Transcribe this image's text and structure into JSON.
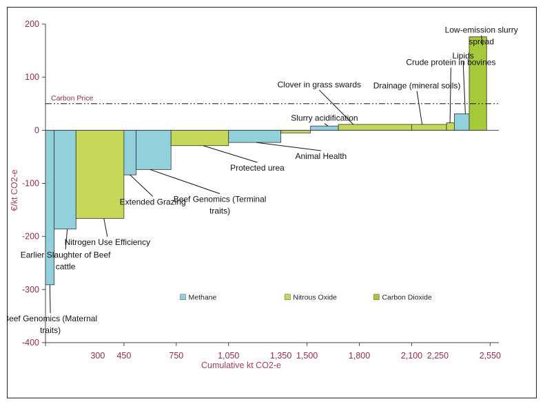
{
  "chart_data": {
    "type": "bar",
    "subtype": "marginal-abatement-cost-curve",
    "title": "",
    "xlabel": "Cumulative kt CO2-e",
    "ylabel": "€/kt CO2-e",
    "xlim": [
      0,
      2600
    ],
    "ylim": [
      -400,
      200
    ],
    "x_ticks": [
      300,
      450,
      750,
      1050,
      1350,
      1500,
      1800,
      2100,
      2250,
      2550
    ],
    "x_tick_labels": [
      "300",
      "450",
      "750",
      "1,050",
      "1,350",
      "1,500",
      "1,800",
      "2,100",
      "2,250",
      "2,550"
    ],
    "y_ticks": [
      -400,
      -300,
      -200,
      -100,
      0,
      100,
      200
    ],
    "carbon_price": {
      "label": "Carbon Price",
      "value": 50
    },
    "colors": {
      "Methane": "#92d1dc",
      "Nitrous Oxide": "#c5d85a",
      "Carbon Dioxide": "#a6c93a"
    },
    "legend": [
      {
        "name": "Methane",
        "color": "#92d1dc"
      },
      {
        "name": "Nitrous Oxide",
        "color": "#c5d85a"
      },
      {
        "name": "Carbon Dioxide",
        "color": "#a6c93a"
      }
    ],
    "bars": [
      {
        "label": "Beef Genomics (Maternal traits)",
        "x0": 0,
        "x1": 50,
        "value": -291,
        "gas": "Methane"
      },
      {
        "label": "Earlier Slaughter of Beef cattle",
        "x0": 50,
        "x1": 175,
        "value": -186,
        "gas": "Methane"
      },
      {
        "label": "Nitrogen Use Efficiency",
        "x0": 175,
        "x1": 450,
        "value": -166,
        "gas": "Nitrous Oxide"
      },
      {
        "label": "Extended Grazing",
        "x0": 450,
        "x1": 520,
        "value": -84,
        "gas": "Methane"
      },
      {
        "label": "Beef Genomics (Terminal traits)",
        "x0": 520,
        "x1": 720,
        "value": -74,
        "gas": "Methane"
      },
      {
        "label": "Protected urea",
        "x0": 720,
        "x1": 1050,
        "value": -29,
        "gas": "Nitrous Oxide"
      },
      {
        "label": "Animal Health",
        "x0": 1050,
        "x1": 1350,
        "value": -23,
        "gas": "Methane"
      },
      {
        "label": "",
        "x0": 1350,
        "x1": 1520,
        "value": -5,
        "gas": "Nitrous Oxide"
      },
      {
        "label": "Slurry acidification",
        "x0": 1520,
        "x1": 1680,
        "value": 8,
        "gas": "Methane"
      },
      {
        "label": "Clover in grass swards",
        "x0": 1680,
        "x1": 2100,
        "value": 11,
        "gas": "Nitrous Oxide"
      },
      {
        "label": "Drainage (mineral soils)",
        "x0": 2100,
        "x1": 2300,
        "value": 11,
        "gas": "Nitrous Oxide"
      },
      {
        "label": "Crude protein in  bovines",
        "x0": 2300,
        "x1": 2345,
        "value": 14,
        "gas": "Nitrous Oxide"
      },
      {
        "label": "Lipids",
        "x0": 2345,
        "x1": 2430,
        "value": 31,
        "gas": "Methane"
      },
      {
        "label": "Low-emission slurry spread",
        "x0": 2430,
        "x1": 2530,
        "value": 176,
        "gas": "Carbon Dioxide"
      }
    ],
    "annotations": [
      {
        "lines": [
          "Low-emission slurry",
          "spread"
        ],
        "tx": 2500,
        "ty": 184,
        "tx2": 2506,
        "ty2": 160
      },
      {
        "lines": [
          "Crude protein in  bovines"
        ],
        "tx": 2325,
        "ty": 123,
        "tx2": 2320,
        "ty2": 14
      },
      {
        "lines": [
          "Lipids"
        ],
        "tx": 2395,
        "ty": 135,
        "tx2": 2408,
        "ty2": 31
      },
      {
        "lines": [
          "Clover in grass swards"
        ],
        "tx": 1570,
        "ty": 81,
        "tx2": 1765,
        "ty2": 11
      },
      {
        "lines": [
          "Drainage (mineral soils)"
        ],
        "tx": 2130,
        "ty": 79,
        "tx2": 2160,
        "ty2": 11
      },
      {
        "lines": [
          "Slurry acidification"
        ],
        "tx": 1600,
        "ty": 18,
        "tx2": 1620,
        "ty2": 8
      },
      {
        "lines": [
          "Animal Health"
        ],
        "tx": 1580,
        "ty": -54,
        "tx2": 1210,
        "ty2": -23
      },
      {
        "lines": [
          "Protected urea"
        ],
        "tx": 1215,
        "ty": -76,
        "tx2": 905,
        "ty2": -29
      },
      {
        "lines": [
          "Beef Genomics (Terminal",
          "traits)"
        ],
        "tx": 1000,
        "ty": -135,
        "tx2": 600,
        "ty2": -74
      },
      {
        "lines": [
          "Extended Grazing"
        ],
        "tx": 615,
        "ty": -140,
        "tx2": 485,
        "ty2": -84
      },
      {
        "lines": [
          "Nitrogen Use Efficiency"
        ],
        "tx": 355,
        "ty": -216,
        "tx2": 335,
        "ty2": -166
      },
      {
        "lines": [
          "Earlier Slaughter of Beef",
          "cattle"
        ],
        "tx": 115,
        "ty": -240,
        "tx2": 125,
        "ty2": -186
      },
      {
        "lines": [
          "Beef Genomics (Maternal",
          "traits)"
        ],
        "tx": 28,
        "ty": -360,
        "tx2": 25,
        "ty2": -291
      }
    ]
  }
}
